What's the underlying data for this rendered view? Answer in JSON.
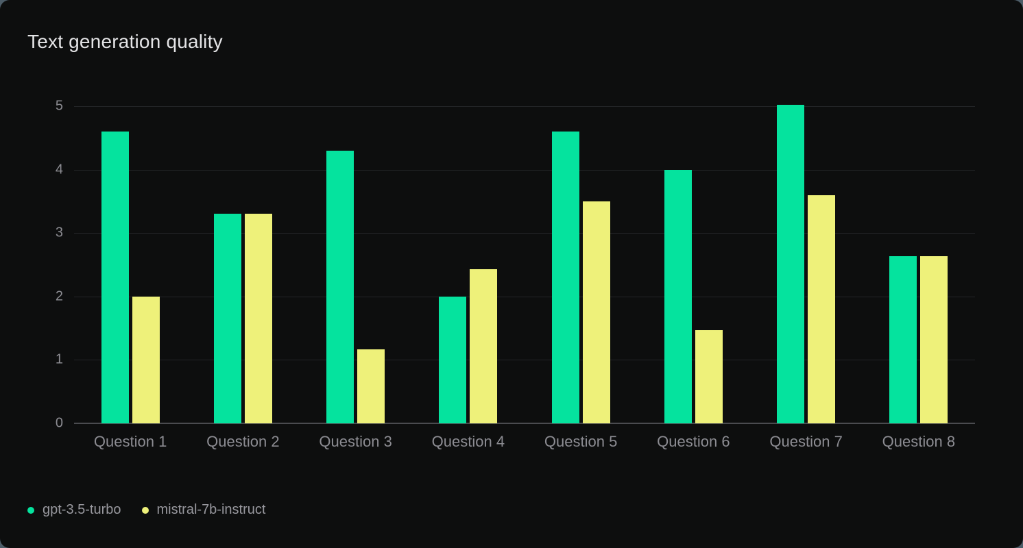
{
  "card": {
    "title": "Text generation quality"
  },
  "colors": {
    "page_background": "#4d5d68",
    "card_background": "#0d0e0e",
    "gridline": "#232527",
    "axis_line": "#4a4b4f",
    "tick_label": "#8c8c92",
    "title_text": "#e4e4e6",
    "legend_text": "#98989e",
    "series_gpt": "#05e39e",
    "series_mistral": "#eef17a"
  },
  "chart_data": {
    "type": "bar",
    "title": "Text generation quality",
    "categories": [
      "Question 1",
      "Question 2",
      "Question 3",
      "Question 4",
      "Question 5",
      "Question 6",
      "Question 7",
      "Question 8"
    ],
    "series": [
      {
        "name": "gpt-3.5-turbo",
        "color": "#05e39e",
        "values": [
          4.6,
          3.3,
          4.3,
          2.0,
          4.6,
          4.0,
          5.02,
          2.63
        ]
      },
      {
        "name": "mistral-7b-instruct",
        "color": "#eef17a",
        "values": [
          2.0,
          3.3,
          1.17,
          2.43,
          3.5,
          1.47,
          3.6,
          2.63
        ]
      }
    ],
    "xlabel": "",
    "ylabel": "",
    "ylim": [
      0,
      5
    ],
    "yticks": [
      0,
      1,
      2,
      3,
      4,
      5
    ],
    "grid": "horizontal",
    "legend_position": "bottom-left"
  }
}
